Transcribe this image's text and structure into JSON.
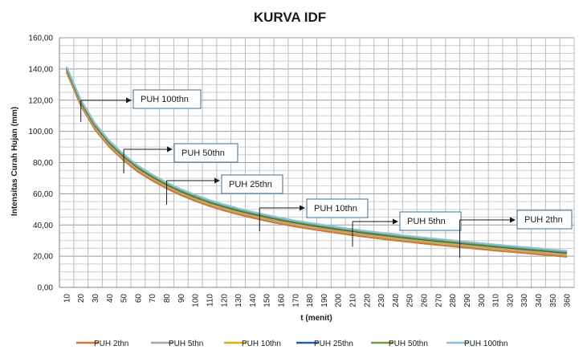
{
  "chart_data": {
    "type": "line",
    "title": "KURVA IDF",
    "xlabel": "t (menit)",
    "ylabel": "Intensitas Curah Hujan (mm)",
    "ylim": [
      0,
      160
    ],
    "yticks": [
      "0,00",
      "20,00",
      "40,00",
      "60,00",
      "80,00",
      "100,00",
      "120,00",
      "140,00",
      "160,00"
    ],
    "categories": [
      10,
      20,
      30,
      40,
      50,
      60,
      70,
      80,
      90,
      100,
      110,
      120,
      130,
      140,
      150,
      160,
      170,
      180,
      190,
      200,
      210,
      220,
      230,
      240,
      250,
      260,
      270,
      280,
      290,
      300,
      310,
      320,
      330,
      340,
      350,
      360
    ],
    "grid": true,
    "legend_position": "bottom",
    "series": [
      {
        "name": "PUH 2thn",
        "color": "#d4772c",
        "values": [
          138.0,
          116.4,
          101.0,
          90.0,
          81.4,
          74.1,
          68.4,
          63.4,
          59.1,
          55.4,
          52.1,
          49.3,
          46.8,
          44.6,
          42.6,
          40.7,
          39.0,
          37.5,
          36.1,
          34.8,
          33.5,
          32.3,
          31.2,
          30.1,
          29.1,
          28.1,
          27.2,
          26.3,
          25.4,
          24.5,
          23.6,
          22.8,
          22.0,
          21.2,
          20.4,
          19.6
        ]
      },
      {
        "name": "PUH 5thn",
        "color": "#a5a5a5",
        "values": [
          139.0,
          117.6,
          102.2,
          91.2,
          82.6,
          75.3,
          69.6,
          64.6,
          60.3,
          56.6,
          53.3,
          50.5,
          48.0,
          45.8,
          43.8,
          41.9,
          40.2,
          38.7,
          37.3,
          36.0,
          34.7,
          33.5,
          32.4,
          31.3,
          30.3,
          29.3,
          28.4,
          27.5,
          26.6,
          25.7,
          24.8,
          24.0,
          23.2,
          22.4,
          21.6,
          20.8
        ]
      },
      {
        "name": "PUH 10thn",
        "color": "#d9b300",
        "values": [
          139.6,
          118.2,
          102.9,
          91.8,
          83.2,
          76.0,
          70.2,
          65.2,
          60.9,
          57.2,
          53.9,
          51.1,
          48.6,
          46.4,
          44.4,
          42.5,
          40.8,
          39.3,
          37.9,
          36.6,
          35.3,
          34.1,
          33.0,
          31.9,
          30.9,
          29.9,
          29.0,
          28.1,
          27.2,
          26.3,
          25.4,
          24.6,
          23.8,
          23.0,
          22.2,
          21.4
        ]
      },
      {
        "name": "PUH 25thn",
        "color": "#2a5fa5",
        "values": [
          140.2,
          118.9,
          103.6,
          92.5,
          83.9,
          76.7,
          70.9,
          65.9,
          61.6,
          57.9,
          54.6,
          51.8,
          49.3,
          47.1,
          45.1,
          43.2,
          41.5,
          40.0,
          38.6,
          37.3,
          36.0,
          34.8,
          33.7,
          32.6,
          31.6,
          30.6,
          29.7,
          28.8,
          27.9,
          27.0,
          26.1,
          25.3,
          24.5,
          23.7,
          22.9,
          22.1
        ]
      },
      {
        "name": "PUH 50thn",
        "color": "#6d9f3a",
        "values": [
          140.8,
          119.5,
          104.3,
          93.2,
          84.6,
          77.3,
          71.5,
          66.5,
          62.2,
          58.5,
          55.2,
          52.4,
          49.9,
          47.7,
          45.7,
          43.8,
          42.1,
          40.6,
          39.2,
          37.9,
          36.6,
          35.4,
          34.3,
          33.2,
          32.2,
          31.2,
          30.3,
          29.4,
          28.5,
          27.6,
          26.7,
          25.9,
          25.1,
          24.3,
          23.5,
          22.7
        ]
      },
      {
        "name": "PUH 100thn",
        "color": "#8fbfdc",
        "values": [
          141.5,
          120.2,
          105.0,
          93.9,
          85.3,
          78.0,
          72.2,
          67.2,
          62.9,
          59.2,
          55.9,
          53.1,
          50.6,
          48.4,
          46.4,
          44.5,
          42.8,
          41.3,
          39.9,
          38.6,
          37.3,
          36.1,
          35.0,
          33.9,
          32.9,
          31.9,
          31.0,
          30.1,
          29.2,
          28.3,
          27.4,
          26.6,
          25.8,
          25.0,
          24.2,
          23.4
        ]
      }
    ],
    "annotations": [
      {
        "text": "PUH 100thn",
        "x": 20,
        "y": 106
      },
      {
        "text": "PUH 50thn",
        "x": 50,
        "y": 73
      },
      {
        "text": "PUH 25thn",
        "x": 80,
        "y": 53
      },
      {
        "text": "PUH 10thn",
        "x": 145,
        "y": 36
      },
      {
        "text": "PUH 5thn",
        "x": 210,
        "y": 26
      },
      {
        "text": "PUH 2thn",
        "x": 285,
        "y": 19
      }
    ]
  }
}
